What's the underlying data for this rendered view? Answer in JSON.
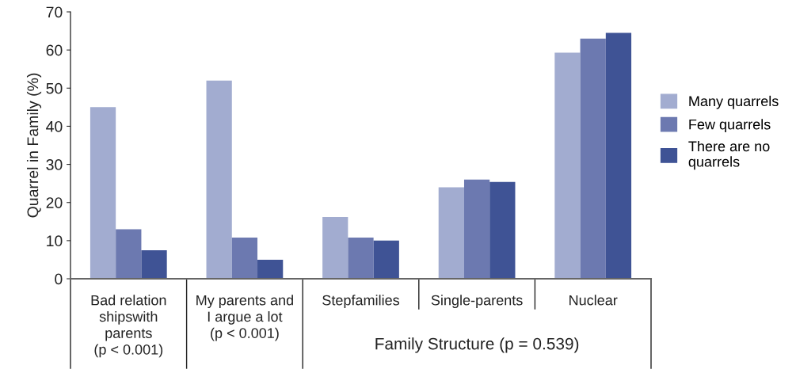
{
  "chart_data": {
    "type": "bar",
    "ylabel": "Quarrel in Family (%)",
    "categories": [
      "Bad relation\nshipswith\nparents\n(p < 0.001)",
      "My parents and\nI argue a lot\n(p < 0.001)",
      "Stepfamilies",
      "Single-parents",
      "Nuclear"
    ],
    "series": [
      {
        "name": "Many quarrels",
        "color": "#a2acd0",
        "values": [
          45,
          52,
          16.2,
          24,
          59.3
        ]
      },
      {
        "name": "Few quarrels",
        "color": "#6c79b0",
        "values": [
          13,
          10.8,
          10.8,
          26,
          63
        ]
      },
      {
        "name": "There are no\nquarrels",
        "color": "#3f5395",
        "values": [
          7.5,
          5,
          10,
          25.4,
          64.5
        ]
      }
    ],
    "ylim": [
      0,
      70
    ],
    "yticks": [
      0,
      10,
      20,
      30,
      40,
      50,
      60,
      70
    ],
    "annotations": [
      "Family Structure (p = 0.539)"
    ],
    "grid": false,
    "legend": "right"
  }
}
